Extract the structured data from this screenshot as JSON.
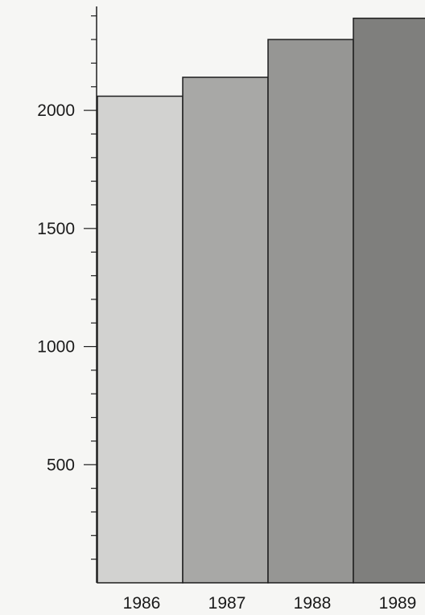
{
  "chart_data": {
    "type": "bar",
    "title": "",
    "xlabel": "",
    "ylabel": "",
    "categories": [
      "1986",
      "1987",
      "1988",
      "1989"
    ],
    "values": [
      2060,
      2140,
      2300,
      2390
    ],
    "ylim": [
      0,
      2450
    ],
    "yticks": [
      500,
      1000,
      1500,
      2000
    ],
    "ytick_labels": [
      "500",
      "1000",
      "1500",
      "2000"
    ],
    "minor_tick_step": 100,
    "grid": false,
    "legend": "none",
    "colors": {
      "bars": [
        "#d2d2d0",
        "#a8a8a6",
        "#969694",
        "#7f7f7d"
      ],
      "outline": "#1e1e1e",
      "background": "#f6f6f4"
    }
  }
}
